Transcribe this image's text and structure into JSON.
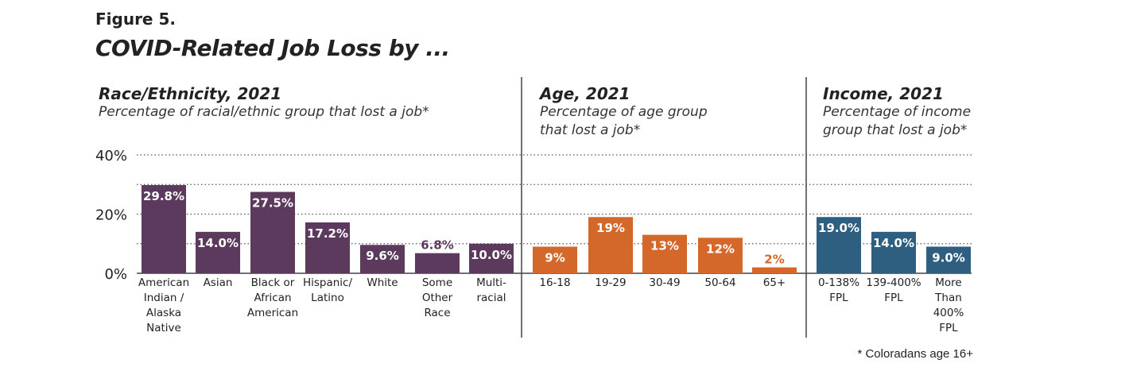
{
  "figure_label": "Figure 5.",
  "title": "COVID-Related Job Loss by ...",
  "footnote": "* Coloradans age 16+",
  "chart_data": [
    {
      "type": "bar",
      "title": "Race/Ethnicity, 2021",
      "subtitle": "Percentage of racial/ethnic group that lost a job*",
      "color": "#5c3a5e",
      "label_color": "#ffffff",
      "categories": [
        "American Indian / Alaska Native",
        "Asian",
        "Black or African American",
        "Hispanic/ Latino",
        "White",
        "Some Other Race",
        "Multi- racial"
      ],
      "category_lines": [
        [
          "American",
          "Indian /",
          "Alaska",
          "Native"
        ],
        [
          "Asian"
        ],
        [
          "Black or",
          "African",
          "American"
        ],
        [
          "Hispanic/",
          "Latino"
        ],
        [
          "White"
        ],
        [
          "Some",
          "Other",
          "Race"
        ],
        [
          "Multi-",
          "racial"
        ]
      ],
      "values": [
        29.8,
        14.0,
        27.5,
        17.2,
        9.6,
        6.8,
        10.0
      ],
      "data_labels": [
        "29.8%",
        "14.0%",
        "27.5%",
        "17.2%",
        "9.6%",
        "6.8%",
        "10.0%"
      ],
      "ylim": [
        0,
        40
      ],
      "yticks": [
        "40%",
        "20%",
        "0%"
      ],
      "grid": true
    },
    {
      "type": "bar",
      "title": "Age, 2021",
      "subtitle": "Percentage of age group that lost a job*",
      "subtitle_lines": [
        "Percentage of age group",
        "that lost a job*"
      ],
      "color": "#d4682a",
      "label_color": "#ffffff",
      "categories": [
        "16-18",
        "19-29",
        "30-49",
        "50-64",
        "65+"
      ],
      "category_lines": [
        [
          "16-18"
        ],
        [
          "19-29"
        ],
        [
          "30-49"
        ],
        [
          "50-64"
        ],
        [
          "65+"
        ]
      ],
      "values": [
        9,
        19,
        13,
        12,
        2
      ],
      "data_labels": [
        "9%",
        "19%",
        "13%",
        "12%",
        "2%"
      ],
      "ylim": [
        0,
        40
      ],
      "grid": true
    },
    {
      "type": "bar",
      "title": "Income, 2021",
      "subtitle": "Percentage of income group that lost a job*",
      "subtitle_lines": [
        "Percentage of income",
        "group that lost a job*"
      ],
      "color": "#2e5e80",
      "label_color": "#ffffff",
      "categories": [
        "0-138% FPL",
        "139-400% FPL",
        "More Than 400% FPL"
      ],
      "category_lines": [
        [
          "0-138%",
          "FPL"
        ],
        [
          "139-400%",
          "FPL"
        ],
        [
          "More",
          "Than",
          "400%",
          "FPL"
        ]
      ],
      "values": [
        19.0,
        14.0,
        9.0
      ],
      "data_labels": [
        "19.0%",
        "14.0%",
        "9.0%"
      ],
      "ylim": [
        0,
        40
      ],
      "grid": true
    }
  ]
}
